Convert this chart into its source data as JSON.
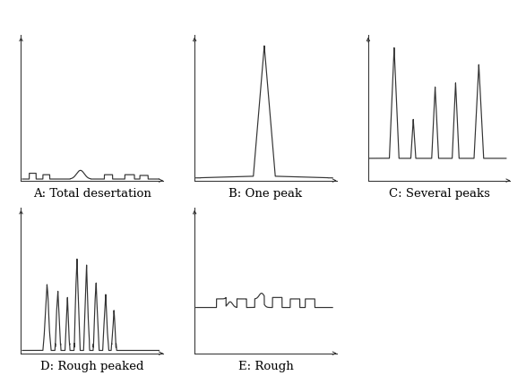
{
  "title_A": "A: Total desertation",
  "title_B": "B: One peak",
  "title_C": "C: Several peaks",
  "title_D": "D: Rough peaked",
  "title_E": "E: Rough",
  "line_color": "#333333",
  "bg_color": "#ffffff",
  "title_fontsize": 9.5,
  "title_fontfamily": "serif",
  "axes_positions": {
    "A": [
      0.04,
      0.53,
      0.27,
      0.38
    ],
    "B": [
      0.37,
      0.53,
      0.27,
      0.38
    ],
    "C": [
      0.7,
      0.53,
      0.27,
      0.38
    ],
    "D": [
      0.04,
      0.08,
      0.27,
      0.38
    ],
    "E": [
      0.37,
      0.08,
      0.27,
      0.38
    ]
  }
}
